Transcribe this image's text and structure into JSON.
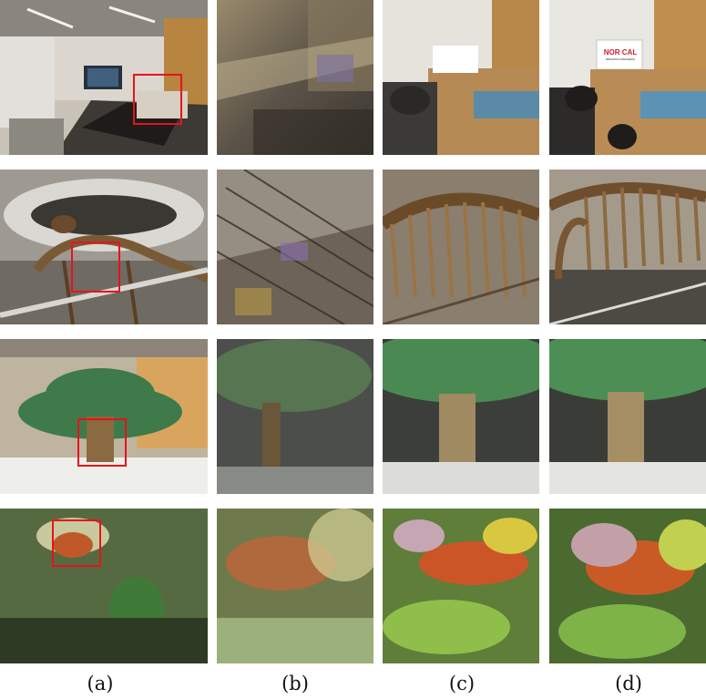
{
  "figure": {
    "column_labels": [
      "(a)",
      "(b)",
      "(c)",
      "(d)"
    ],
    "rows": [
      {
        "name": "conference-room",
        "overview_sign": "",
        "zoom_sign": "NOR CAL",
        "zoom_sign_sub": "BREAKING BARRIERS"
      },
      {
        "name": "dinosaur-skeleton"
      },
      {
        "name": "palm-tree"
      },
      {
        "name": "orchid-flower"
      }
    ],
    "colors": {
      "highlight": "#e8121b",
      "sign_text": "#d11f2a"
    }
  }
}
